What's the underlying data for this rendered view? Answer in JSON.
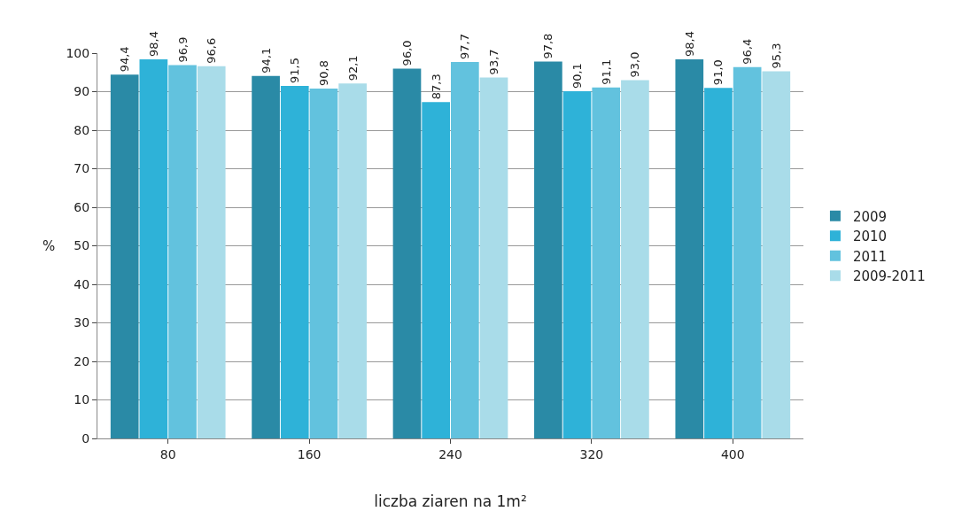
{
  "chart_data": {
    "type": "bar",
    "xlabel": "liczba ziaren na 1m²",
    "ylabel": "%",
    "categories": [
      "80",
      "160",
      "240",
      "320",
      "400"
    ],
    "series": [
      {
        "name": "2009",
        "color": "#2a8aa6",
        "values": [
          94.4,
          94.1,
          96.0,
          97.8,
          98.4
        ],
        "value_labels": [
          "94,4",
          "94,1",
          "96,0",
          "97,8",
          "98,4"
        ]
      },
      {
        "name": "2010",
        "color": "#2eb2d8",
        "values": [
          98.4,
          91.5,
          87.3,
          90.1,
          91.0
        ],
        "value_labels": [
          "98,4",
          "91,5",
          "87,3",
          "90,1",
          "91,0"
        ]
      },
      {
        "name": "2011",
        "color": "#62c2de",
        "values": [
          96.9,
          90.8,
          97.7,
          91.1,
          96.4
        ],
        "value_labels": [
          "96,9",
          "90,8",
          "97,7",
          "91,1",
          "96,4"
        ]
      },
      {
        "name": "2009-2011",
        "color": "#a9dce9",
        "values": [
          96.6,
          92.1,
          93.7,
          93.0,
          95.3
        ],
        "value_labels": [
          "96,6",
          "92,1",
          "93,7",
          "93,0",
          "95,3"
        ]
      }
    ],
    "ylim": [
      0,
      100
    ],
    "yticks": [
      0,
      10,
      20,
      30,
      40,
      50,
      60,
      70,
      80,
      90,
      100
    ],
    "grid": "y",
    "legend": "right"
  }
}
